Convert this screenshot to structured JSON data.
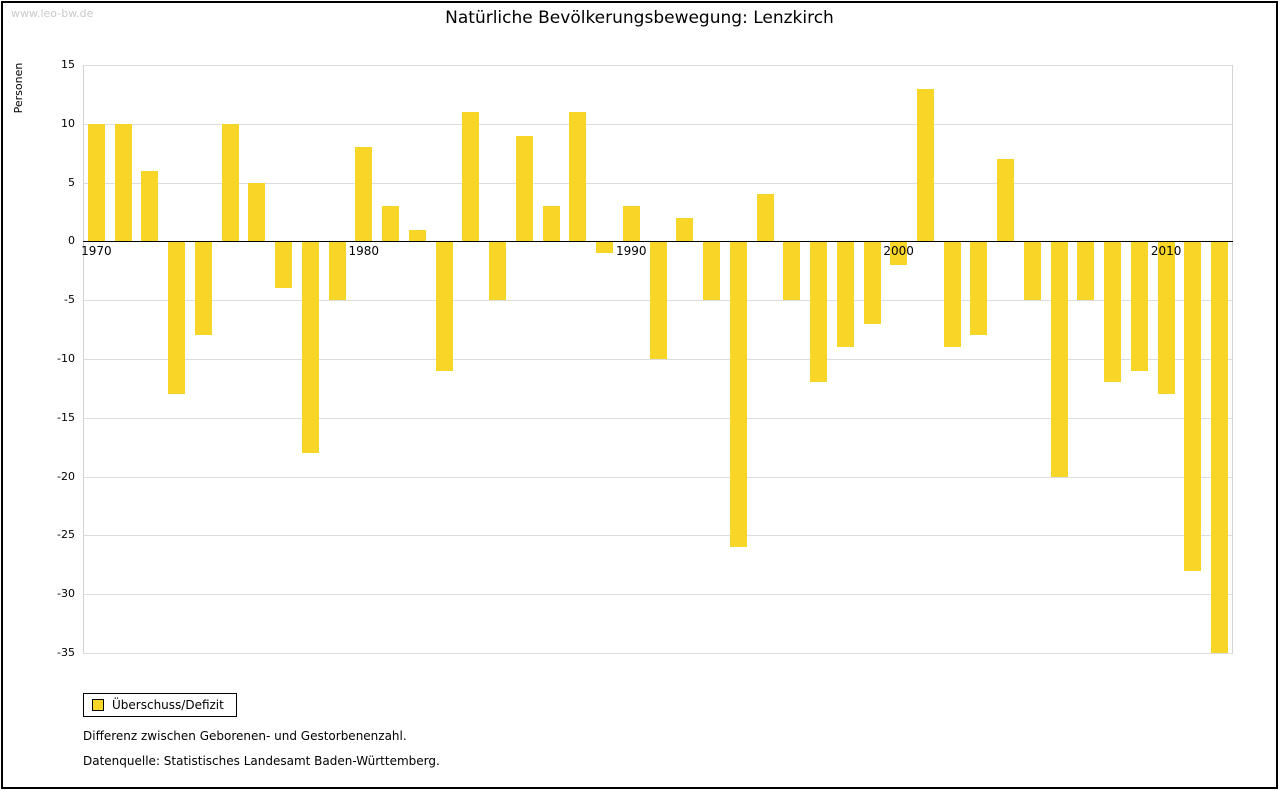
{
  "watermark": "www.leo-bw.de",
  "title": "Natürliche Bevölkerungsbewegung: Lenzkirch",
  "y_axis_label": "Personen",
  "legend": {
    "label": "Überschuss/Defizit"
  },
  "footnotes": [
    "Differenz zwischen Geborenen- und Gestorbenenzahl.",
    "Datenquelle: Statistisches Landesamt Baden-Württemberg."
  ],
  "colors": {
    "bar": "#f8d628",
    "grid": "#dcdcdc",
    "zero_axis": "#000000",
    "watermark": "#c9c9c9"
  },
  "chart_data": {
    "type": "bar",
    "title": "Natürliche Bevölkerungsbewegung: Lenzkirch",
    "xlabel": "",
    "ylabel": "Personen",
    "ylim": [
      -35,
      15
    ],
    "ytick_step": 5,
    "grid": true,
    "legend_position": "bottom-left",
    "series_name": "Überschuss/Defizit",
    "x_tick_labels": [
      1970,
      1980,
      1990,
      2000,
      2010
    ],
    "x": [
      1970,
      1971,
      1972,
      1973,
      1974,
      1975,
      1976,
      1977,
      1978,
      1979,
      1980,
      1981,
      1982,
      1983,
      1984,
      1985,
      1986,
      1987,
      1988,
      1989,
      1990,
      1991,
      1992,
      1993,
      1994,
      1995,
      1996,
      1997,
      1998,
      1999,
      2000,
      2001,
      2002,
      2003,
      2004,
      2005,
      2006,
      2007,
      2008,
      2009,
      2010,
      2011,
      2012
    ],
    "values": [
      10,
      10,
      6,
      -13,
      -8,
      10,
      5,
      -4,
      -18,
      -5,
      8,
      3,
      1,
      -11,
      11,
      -5,
      9,
      3,
      11,
      -1,
      3,
      -10,
      2,
      -5,
      -26,
      4,
      -5,
      -12,
      -9,
      -7,
      -2,
      13,
      -9,
      -8,
      7,
      -5,
      -20,
      -5,
      -12,
      -11,
      -13,
      -28,
      -35
    ]
  }
}
